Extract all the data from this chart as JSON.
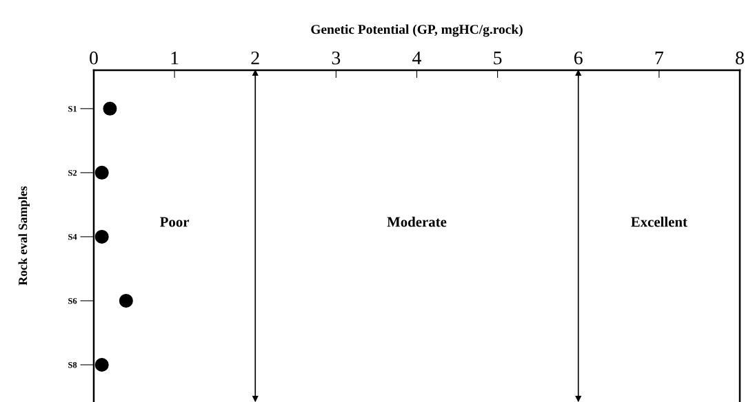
{
  "chart_data": {
    "type": "scatter",
    "orientation": "horizontal",
    "xlabel": "Genetic Potential (GP, mgHC/g.rock)",
    "ylabel": "Rock eval Samples",
    "categories": [
      "S1",
      "S2",
      "S4",
      "S6",
      "S8"
    ],
    "values": [
      0.2,
      0.1,
      0.1,
      0.4,
      0.1
    ],
    "color": "#000000",
    "marker": "circle",
    "xlim": [
      0,
      8
    ],
    "xticks": [
      0,
      1,
      2,
      3,
      4,
      5,
      6,
      7,
      8
    ],
    "ref_lines": [
      {
        "axis": "x",
        "value": 2,
        "color": "#000000"
      },
      {
        "axis": "x",
        "value": 6,
        "color": "#000000"
      }
    ],
    "annotations": [
      "Poor",
      "Moderate",
      "Excellent"
    ],
    "grid": false,
    "legend": false
  }
}
